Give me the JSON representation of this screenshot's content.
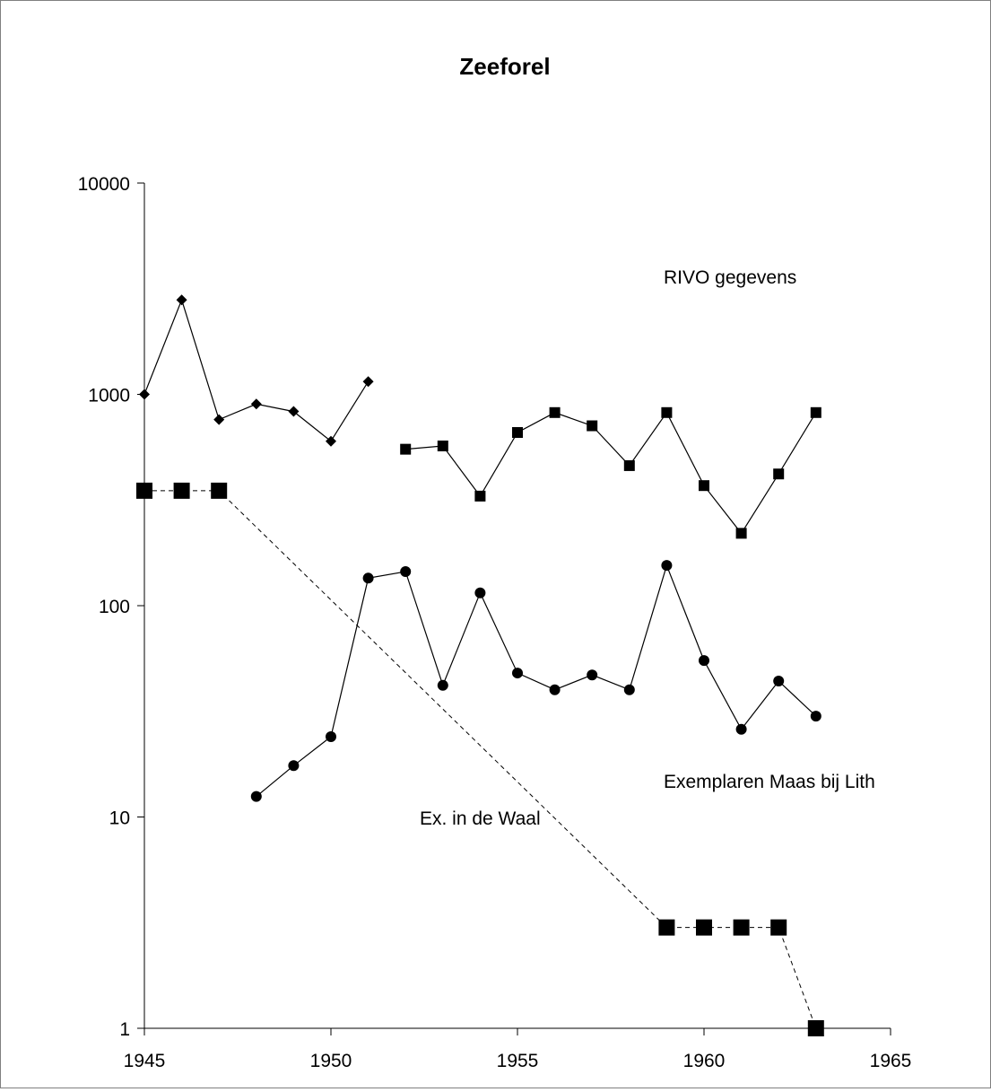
{
  "chart_data": {
    "type": "line",
    "title": "Zeeforel",
    "xlabel": "",
    "ylabel": "",
    "y_scale": "log",
    "xlim": [
      1945,
      1965
    ],
    "ylim": [
      1,
      10000
    ],
    "x_ticks": [
      "1945",
      "1950",
      "1955",
      "1960",
      "1965"
    ],
    "y_ticks": [
      "1",
      "10",
      "100",
      "1000",
      "10000"
    ],
    "grid": false,
    "legend": "none",
    "annotations": [
      {
        "text": "RIVO gegevens"
      },
      {
        "text": "Exemplaren Maas bij Lith"
      },
      {
        "text": "Ex. in de Waal"
      }
    ],
    "series": [
      {
        "marker": "diamond",
        "line": "solid",
        "color": "#000000",
        "x": [
          1945,
          1946,
          1947,
          1948,
          1949,
          1950,
          1951
        ],
        "y": [
          1000,
          2800,
          760,
          900,
          830,
          600,
          1150
        ]
      },
      {
        "marker": "square",
        "line": "solid",
        "color": "#000000",
        "x": [
          1952,
          1953,
          1954,
          1955,
          1956,
          1957,
          1958,
          1959,
          1960,
          1961,
          1962,
          1963
        ],
        "y": [
          550,
          570,
          330,
          660,
          820,
          710,
          460,
          820,
          370,
          220,
          420,
          820
        ]
      },
      {
        "marker": "circle",
        "line": "solid",
        "color": "#000000",
        "x": [
          1948,
          1949,
          1950,
          1951,
          1952,
          1953,
          1954,
          1955,
          1956,
          1957,
          1958,
          1959,
          1960,
          1961,
          1962,
          1963
        ],
        "y": [
          12.5,
          17.5,
          24,
          135,
          145,
          42,
          115,
          48,
          40,
          47,
          40,
          155,
          55,
          26,
          44,
          30
        ]
      },
      {
        "marker": "square-large",
        "line": "dashed",
        "color": "#000000",
        "x": [
          1945,
          1946,
          1947,
          1959,
          1960,
          1961,
          1962,
          1963
        ],
        "y": [
          350,
          350,
          350,
          3,
          3,
          3,
          3,
          1
        ]
      }
    ]
  }
}
